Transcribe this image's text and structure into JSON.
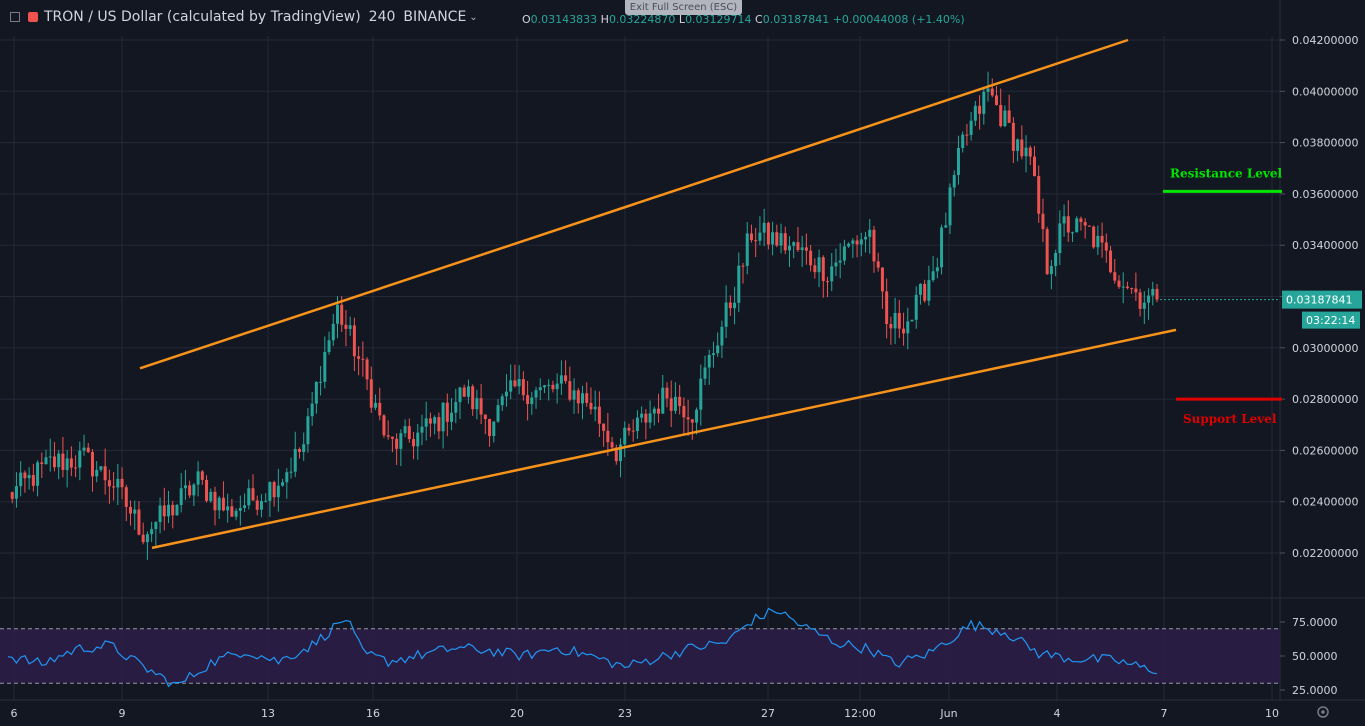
{
  "header": {
    "symbol": "TRON / US Dollar (calculated by TradingView)",
    "interval": "240",
    "exchange": "BINANCE",
    "open_label": "O",
    "open": "0.03143833",
    "high_label": "H",
    "high": "0.03224870",
    "low_label": "L",
    "low": "0.03129714",
    "close_label": "C",
    "close": "0.03187841",
    "change": "+0.00044008 (+1.40%)",
    "exit_fullscreen": "Exit Full Screen (ESC)"
  },
  "colors": {
    "background": "#131722",
    "up": "#26a69a",
    "down": "#ef5350",
    "channel": "#f7931a",
    "resistance": "#00e600",
    "support": "#e00000",
    "rsi": "#2196f3",
    "rsi_band": "#2b1d47"
  },
  "chart_data": [
    {
      "type": "candlestick",
      "price_axis": [
        "0.04200000",
        "0.04000000",
        "0.03800000",
        "0.03600000",
        "0.03400000",
        "0.03200000",
        "0.03000000",
        "0.02800000",
        "0.02600000",
        "0.02400000",
        "0.02200000"
      ],
      "x_ticks": [
        "6",
        "9",
        "13",
        "16",
        "20",
        "23",
        "27",
        "12:00",
        "Jun",
        "4",
        "7",
        "10"
      ],
      "last_price": "0.03187841",
      "countdown": "03:22:14",
      "annotations": {
        "resistance_label": "Resistance Level",
        "resistance_value": 0.0361,
        "support_label": "Support Level",
        "support_value": 0.028
      },
      "channel": {
        "upper": [
          [
            0,
            0.0292
          ],
          [
            1,
            0.042
          ]
        ],
        "lower": [
          [
            0,
            0.0222
          ],
          [
            1,
            0.0307
          ]
        ]
      },
      "anchors": [
        [
          0,
          0.0242
        ],
        [
          10,
          0.0255
        ],
        [
          18,
          0.0257
        ],
        [
          25,
          0.0247
        ],
        [
          32,
          0.0228
        ],
        [
          38,
          0.0236
        ],
        [
          45,
          0.0248
        ],
        [
          52,
          0.0236
        ],
        [
          60,
          0.0243
        ],
        [
          65,
          0.025
        ],
        [
          70,
          0.0262
        ],
        [
          74,
          0.0292
        ],
        [
          78,
          0.0315
        ],
        [
          82,
          0.03
        ],
        [
          86,
          0.0282
        ],
        [
          90,
          0.0262
        ],
        [
          96,
          0.0265
        ],
        [
          102,
          0.0272
        ],
        [
          108,
          0.0283
        ],
        [
          114,
          0.0271
        ],
        [
          120,
          0.0284
        ],
        [
          126,
          0.0283
        ],
        [
          132,
          0.0285
        ],
        [
          138,
          0.0278
        ],
        [
          144,
          0.026
        ],
        [
          150,
          0.0271
        ],
        [
          156,
          0.0282
        ],
        [
          162,
          0.0275
        ],
        [
          166,
          0.0295
        ],
        [
          172,
          0.0322
        ],
        [
          176,
          0.0345
        ],
        [
          182,
          0.0342
        ],
        [
          188,
          0.0337
        ],
        [
          194,
          0.033
        ],
        [
          200,
          0.0341
        ],
        [
          204,
          0.0345
        ],
        [
          208,
          0.0308
        ],
        [
          214,
          0.0312
        ],
        [
          220,
          0.0335
        ],
        [
          226,
          0.038
        ],
        [
          232,
          0.04
        ],
        [
          238,
          0.0382
        ],
        [
          242,
          0.0372
        ],
        [
          246,
          0.0332
        ],
        [
          250,
          0.0348
        ],
        [
          256,
          0.0345
        ],
        [
          262,
          0.033
        ],
        [
          268,
          0.032
        ],
        [
          272,
          0.0318
        ]
      ],
      "rsi": {
        "axis": [
          "75.0000",
          "50.0000",
          "25.0000"
        ],
        "band": [
          30,
          70
        ],
        "points": [
          [
            0,
            50
          ],
          [
            8,
            44
          ],
          [
            16,
            55
          ],
          [
            24,
            58
          ],
          [
            32,
            42
          ],
          [
            40,
            28
          ],
          [
            48,
            45
          ],
          [
            56,
            54
          ],
          [
            64,
            46
          ],
          [
            72,
            58
          ],
          [
            80,
            78
          ],
          [
            84,
            52
          ],
          [
            90,
            46
          ],
          [
            98,
            51
          ],
          [
            106,
            56
          ],
          [
            114,
            54
          ],
          [
            122,
            50
          ],
          [
            130,
            56
          ],
          [
            138,
            50
          ],
          [
            146,
            42
          ],
          [
            154,
            49
          ],
          [
            162,
            56
          ],
          [
            170,
            60
          ],
          [
            176,
            76
          ],
          [
            182,
            84
          ],
          [
            188,
            72
          ],
          [
            196,
            60
          ],
          [
            204,
            55
          ],
          [
            210,
            44
          ],
          [
            218,
            52
          ],
          [
            228,
            73
          ],
          [
            236,
            68
          ],
          [
            244,
            52
          ],
          [
            252,
            48
          ],
          [
            262,
            47
          ],
          [
            270,
            40
          ]
        ]
      }
    }
  ]
}
